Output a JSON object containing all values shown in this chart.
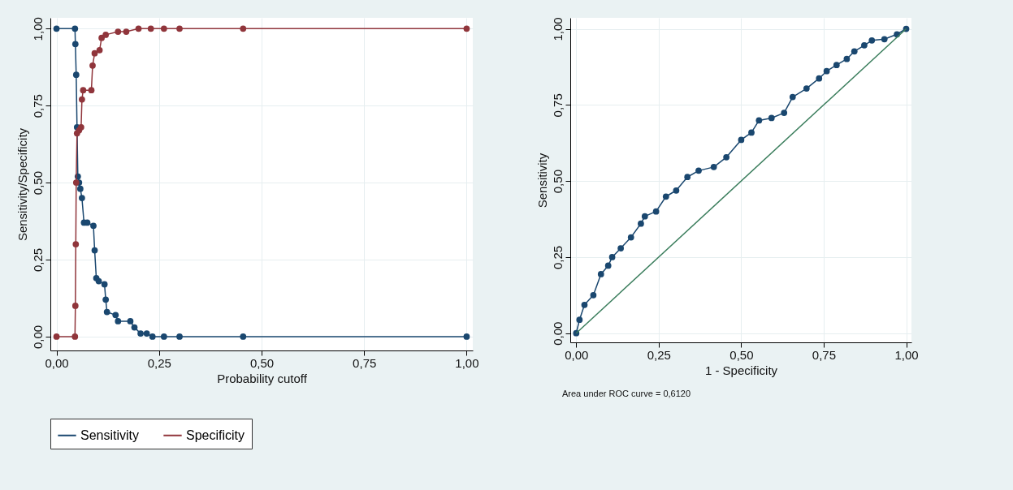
{
  "chart_data": [
    {
      "type": "line",
      "xlabel": "Probability cutoff",
      "ylabel": "Sensitivity/Specificity",
      "xlim": [
        -0.015,
        1.015
      ],
      "ylim": [
        -0.045,
        1.035
      ],
      "xticks": [
        {
          "value": 0,
          "label": "0,00"
        },
        {
          "value": 0.25,
          "label": "0,25"
        },
        {
          "value": 0.5,
          "label": "0,50"
        },
        {
          "value": 0.75,
          "label": "0,75"
        },
        {
          "value": 1,
          "label": "1,00"
        }
      ],
      "yticks": [
        {
          "value": 0,
          "label": "0,00"
        },
        {
          "value": 0.25,
          "label": "0,25"
        },
        {
          "value": 0.5,
          "label": "0,50"
        },
        {
          "value": 0.75,
          "label": "0,75"
        },
        {
          "value": 1,
          "label": "1,00"
        }
      ],
      "grid": true,
      "legend": "bottom",
      "marker": "circle",
      "series": [
        {
          "name": "Sensitivity",
          "color": "#1a476f",
          "x": [
            0,
            0.045,
            0.046,
            0.048,
            0.05,
            0.052,
            0.055,
            0.058,
            0.062,
            0.067,
            0.075,
            0.09,
            0.093,
            0.097,
            0.103,
            0.117,
            0.12,
            0.123,
            0.144,
            0.15,
            0.18,
            0.19,
            0.205,
            0.22,
            0.234,
            0.262,
            0.3,
            0.455,
            1
          ],
          "values": [
            1,
            1,
            0.95,
            0.85,
            0.68,
            0.52,
            0.5,
            0.48,
            0.45,
            0.37,
            0.37,
            0.36,
            0.28,
            0.19,
            0.18,
            0.17,
            0.12,
            0.08,
            0.07,
            0.05,
            0.05,
            0.03,
            0.01,
            0.01,
            0,
            0,
            0,
            0,
            0
          ]
        },
        {
          "name": "Specificity",
          "color": "#90353b",
          "x": [
            0,
            0.045,
            0.046,
            0.047,
            0.048,
            0.05,
            0.055,
            0.06,
            0.062,
            0.065,
            0.085,
            0.088,
            0.093,
            0.105,
            0.11,
            0.12,
            0.15,
            0.17,
            0.2,
            0.23,
            0.262,
            0.3,
            0.455,
            1
          ],
          "values": [
            0,
            0,
            0.1,
            0.3,
            0.5,
            0.66,
            0.67,
            0.68,
            0.77,
            0.8,
            0.8,
            0.88,
            0.92,
            0.93,
            0.97,
            0.98,
            0.99,
            0.99,
            1,
            1,
            1,
            1,
            1,
            1
          ]
        }
      ]
    },
    {
      "type": "line",
      "xlabel": "1 - Specificity",
      "ylabel": "Sensitivity",
      "xlim": [
        -0.018,
        1.016
      ],
      "ylim": [
        -0.03,
        1.036
      ],
      "xticks": [
        {
          "value": 0,
          "label": "0,00"
        },
        {
          "value": 0.25,
          "label": "0,25"
        },
        {
          "value": 0.5,
          "label": "0,50"
        },
        {
          "value": 0.75,
          "label": "0,75"
        },
        {
          "value": 1,
          "label": "1,00"
        }
      ],
      "yticks": [
        {
          "value": 0,
          "label": "0,00"
        },
        {
          "value": 0.25,
          "label": "0,25"
        },
        {
          "value": 0.5,
          "label": "0,50"
        },
        {
          "value": 0.75,
          "label": "0,75"
        },
        {
          "value": 1,
          "label": "1,00"
        }
      ],
      "grid": true,
      "marker": "circle",
      "annotations": [
        "Area under ROC curve = 0,6120"
      ],
      "series": [
        {
          "color": "#1a476f",
          "x": [
            0,
            0.01,
            0.025,
            0.052,
            0.075,
            0.097,
            0.109,
            0.135,
            0.166,
            0.196,
            0.208,
            0.242,
            0.272,
            0.303,
            0.337,
            0.371,
            0.417,
            0.455,
            0.5,
            0.531,
            0.554,
            0.592,
            0.63,
            0.656,
            0.698,
            0.736,
            0.759,
            0.789,
            0.82,
            0.843,
            0.873,
            0.896,
            0.934,
            0.972,
            1
          ],
          "values": [
            0,
            0.044,
            0.093,
            0.125,
            0.194,
            0.222,
            0.25,
            0.279,
            0.315,
            0.36,
            0.384,
            0.4,
            0.449,
            0.469,
            0.513,
            0.534,
            0.546,
            0.578,
            0.635,
            0.659,
            0.699,
            0.707,
            0.724,
            0.776,
            0.804,
            0.837,
            0.861,
            0.881,
            0.901,
            0.926,
            0.946,
            0.962,
            0.966,
            0.982,
            1
          ]
        },
        {
          "type": "line",
          "color": "#3a7d5c",
          "marker": "none",
          "x": [
            0,
            1
          ],
          "values": [
            0,
            1
          ]
        }
      ]
    }
  ]
}
